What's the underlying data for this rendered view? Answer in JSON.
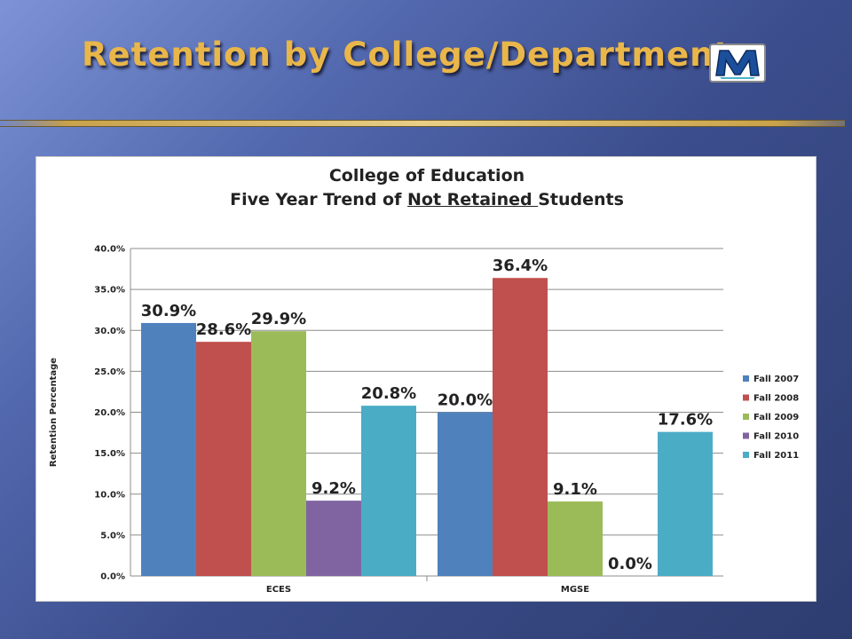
{
  "slide": {
    "title": "Retention by College/Department:",
    "logo_letter": "M"
  },
  "chart_data": {
    "type": "bar",
    "title_line1": "College of Education",
    "title_line2_before": "Five Year Trend of ",
    "title_line2_underlined": "Not Retained ",
    "title_line2_after": "Students",
    "xlabel": "",
    "ylabel": "Retention Percentage",
    "categories": [
      "ECES",
      "MGSE"
    ],
    "ylim": [
      0,
      40
    ],
    "yticks": [
      "0.0%",
      "5.0%",
      "10.0%",
      "15.0%",
      "20.0%",
      "25.0%",
      "30.0%",
      "35.0%",
      "40.0%"
    ],
    "grid": true,
    "legend_position": "right",
    "series": [
      {
        "name": "Fall 2007",
        "color": "#4f81bd",
        "values": [
          30.9,
          20.0
        ],
        "labels": [
          "30.9%",
          "20.0%"
        ]
      },
      {
        "name": "Fall 2008",
        "color": "#c0504d",
        "values": [
          28.6,
          36.4
        ],
        "labels": [
          "28.6%",
          "36.4%"
        ]
      },
      {
        "name": "Fall 2009",
        "color": "#9bbb59",
        "values": [
          29.9,
          9.1
        ],
        "labels": [
          "29.9%",
          "9.1%"
        ]
      },
      {
        "name": "Fall 2010",
        "color": "#8064a2",
        "values": [
          9.2,
          0.0
        ],
        "labels": [
          "9.2%",
          "0.0%"
        ]
      },
      {
        "name": "Fall 2011",
        "color": "#4bacc6",
        "values": [
          20.8,
          17.6
        ],
        "labels": [
          "20.8%",
          "17.6%"
        ]
      }
    ]
  }
}
